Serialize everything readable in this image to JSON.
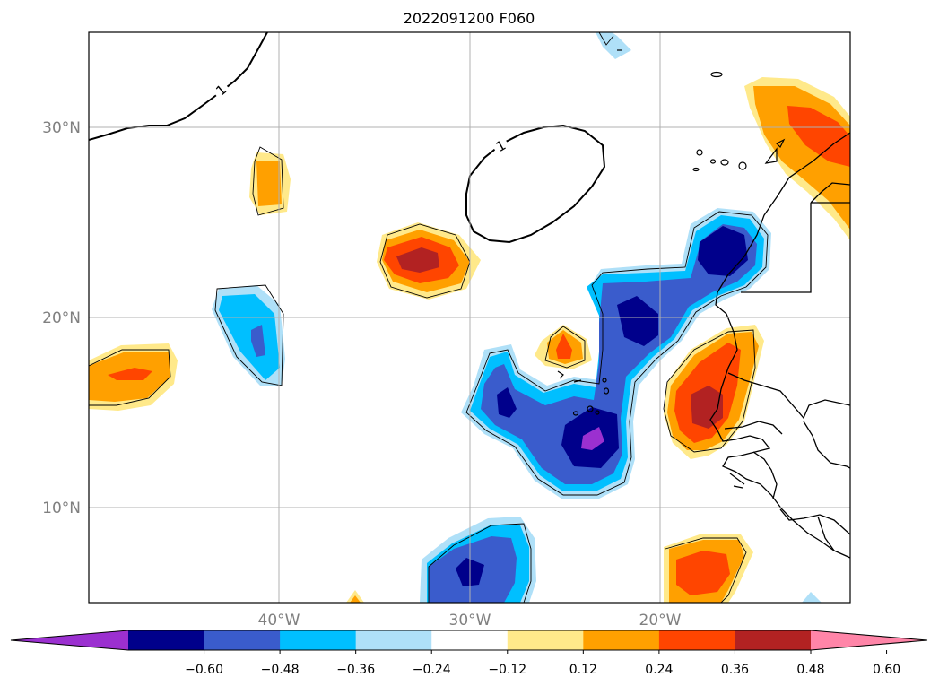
{
  "title": "2022091200 F060",
  "lat_labels": [
    "30°N",
    "20°N",
    "10°N"
  ],
  "lon_labels": [
    "40°W",
    "30°W",
    "20°W"
  ],
  "colorbar": {
    "tick_labels": [
      "−0.60",
      "−0.48",
      "−0.36",
      "−0.24",
      "−0.12",
      "0.12",
      "0.24",
      "0.36",
      "0.48",
      "0.60"
    ],
    "colors": [
      "#9b30d0",
      "#00008b",
      "#3a5ccc",
      "#00bfff",
      "#afe0f8",
      "#ffffff",
      "#ffe98a",
      "#ffa000",
      "#ff4500",
      "#b22222",
      "#ff85a8"
    ]
  },
  "contour_labels": [
    "1",
    "1"
  ],
  "map_extent": {
    "lon": [
      -50,
      -10
    ],
    "lat": [
      5,
      35
    ]
  },
  "shading_colors": {
    "light_blue": "#afe0f8",
    "blue": "#00bfff",
    "mid_blue": "#3a5ccc",
    "dark_blue": "#00008b",
    "purple": "#9b30d0",
    "yellow": "#ffe98a",
    "orange": "#ffa000",
    "red_orange": "#ff4500",
    "dark_red": "#b22222"
  }
}
